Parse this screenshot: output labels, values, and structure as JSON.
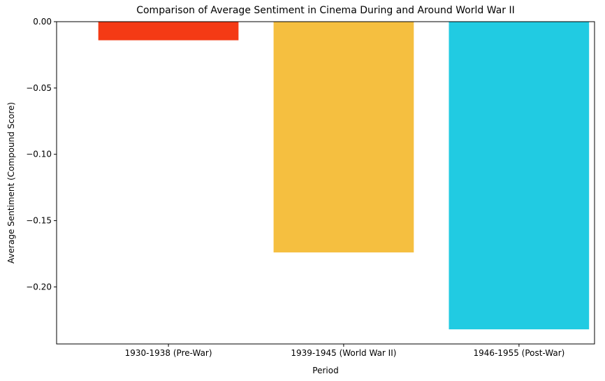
{
  "chart_data": {
    "type": "bar",
    "title": "Comparison of Average Sentiment in Cinema During and Around World War II",
    "xlabel": "Period",
    "ylabel": "Average Sentiment (Compound Score)",
    "categories": [
      "1930-1938 (Pre-War)",
      "1939-1945 (World War II)",
      "1946-1955 (Post-War)"
    ],
    "values": [
      -0.014,
      -0.174,
      -0.232
    ],
    "colors": [
      "#f43a15",
      "#f5bf40",
      "#21cbe2"
    ],
    "ylim": [
      -0.243,
      0.0
    ],
    "yticks": [
      0.0,
      -0.05,
      -0.1,
      -0.15,
      -0.2
    ],
    "ytick_labels": [
      "0.00",
      "−0.05",
      "−0.10",
      "−0.15",
      "−0.20"
    ],
    "grid": false,
    "legend": false
  }
}
